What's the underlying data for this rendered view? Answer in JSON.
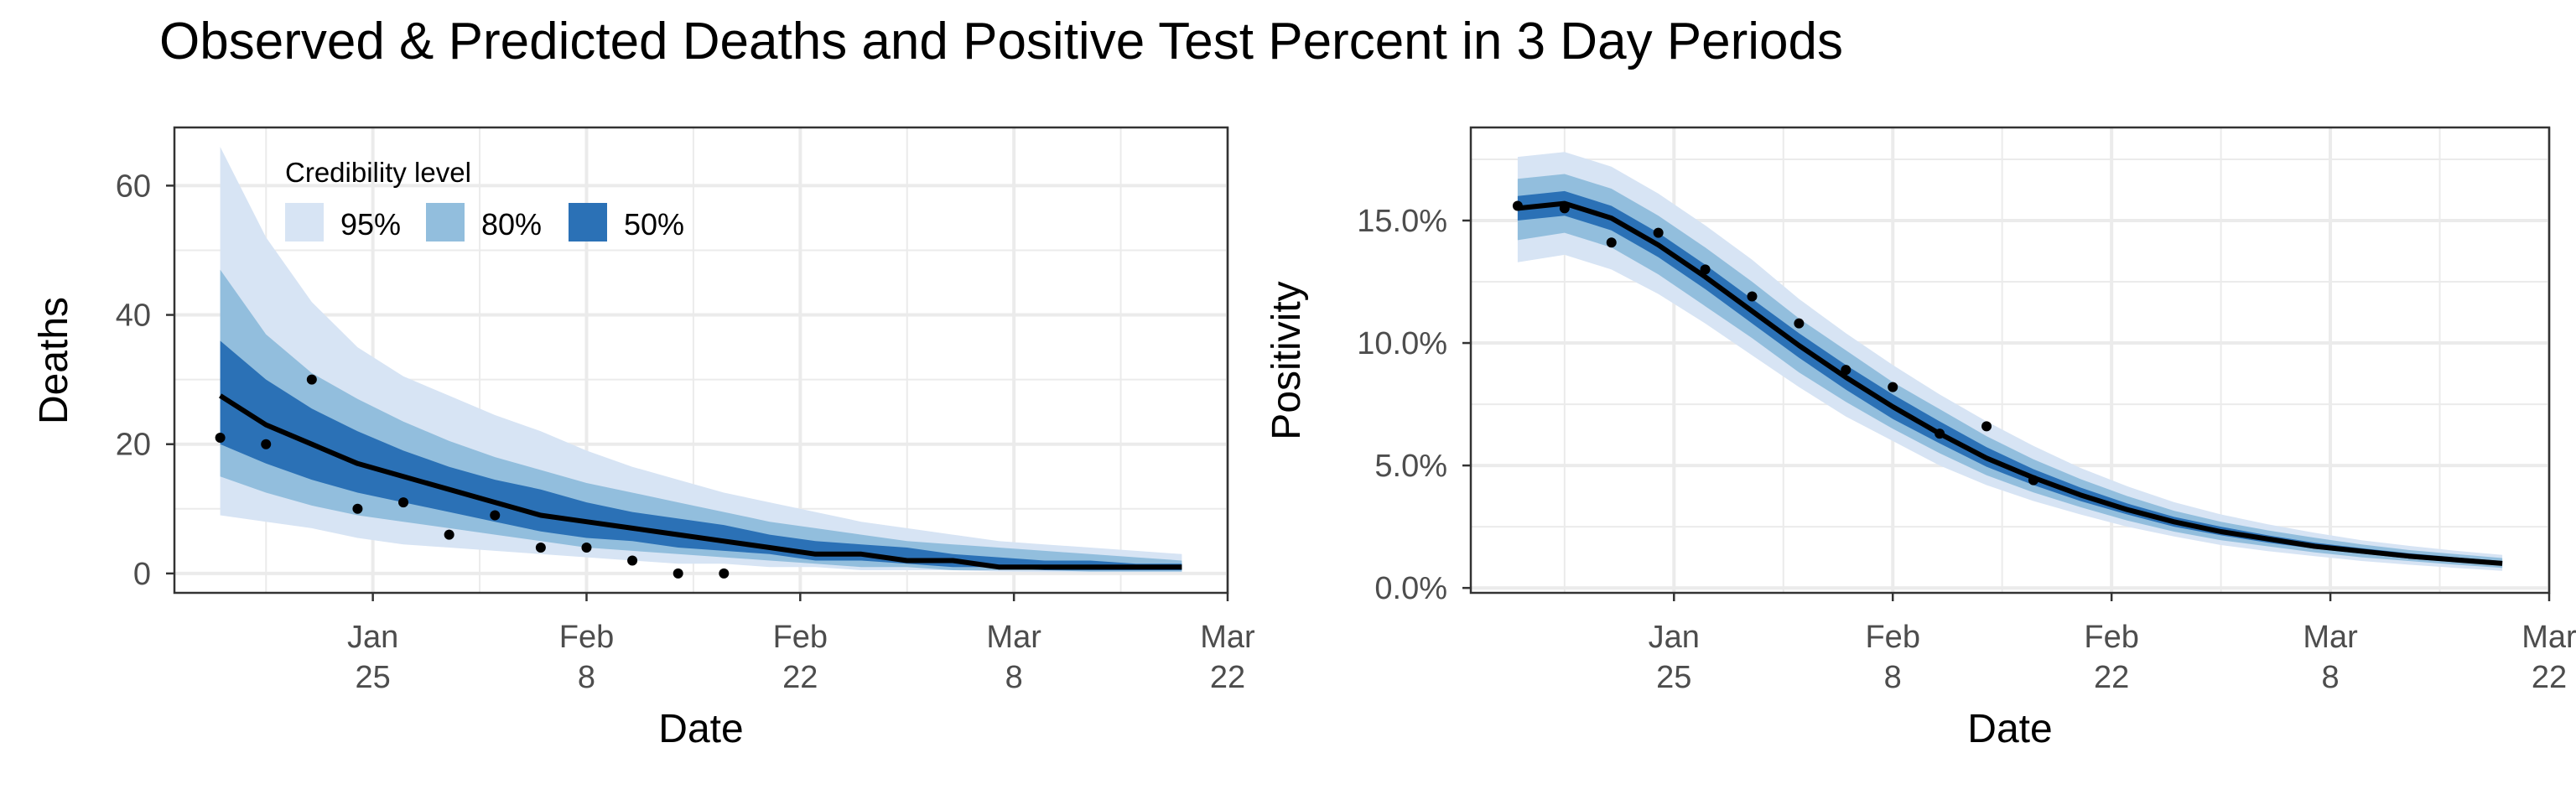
{
  "figure": {
    "title": "Observed & Predicted Deaths and Positive Test Percent in 3 Day Periods"
  },
  "colors": {
    "ci95": "#d7e4f4",
    "ci80": "#92bedd",
    "ci50": "#2b71b6",
    "line": "#000000",
    "point": "#000000",
    "grid": "#ebebeb",
    "panel_border": "#333333"
  },
  "legend": {
    "title": "Credibility level",
    "items": [
      "95%",
      "80%",
      "50%"
    ]
  },
  "chart_data": [
    {
      "type": "line",
      "ylabel": "Deaths",
      "xlabel": "Date",
      "xlim": [
        "2021-01-12",
        "2021-03-22"
      ],
      "ylim": [
        -3,
        69
      ],
      "y_ticks": [
        0,
        20,
        40,
        60
      ],
      "y_tick_labels": [
        "0",
        "20",
        "40",
        "60"
      ],
      "x_ticks": [
        "2021-01-25",
        "2021-02-08",
        "2021-02-22",
        "2021-03-08",
        "2021-03-22"
      ],
      "x_tick_labels": [
        [
          "Jan",
          "25"
        ],
        [
          "Feb",
          "8"
        ],
        [
          "Feb",
          "22"
        ],
        [
          "Mar",
          "8"
        ],
        [
          "Mar",
          "22"
        ]
      ],
      "legend_position": "top-left",
      "grid": true,
      "bands": {
        "x": [
          "2021-01-15",
          "2021-01-18",
          "2021-01-21",
          "2021-01-24",
          "2021-01-27",
          "2021-01-30",
          "2021-02-02",
          "2021-02-05",
          "2021-02-08",
          "2021-02-11",
          "2021-02-14",
          "2021-02-17",
          "2021-02-20",
          "2021-02-23",
          "2021-02-26",
          "2021-03-01",
          "2021-03-04",
          "2021-03-07",
          "2021-03-10",
          "2021-03-13",
          "2021-03-16",
          "2021-03-19"
        ],
        "median": [
          27.5,
          23,
          20,
          17,
          15,
          13,
          11,
          9,
          8,
          7,
          6,
          5,
          4,
          3,
          3,
          2,
          2,
          1,
          1,
          1,
          1,
          1
        ],
        "lo50": [
          20,
          17,
          14.5,
          12.5,
          11,
          9.5,
          8,
          6.5,
          5.5,
          5,
          4,
          3.5,
          3,
          2,
          2,
          1.5,
          1,
          1,
          0.5,
          0.5,
          0.5,
          0.5
        ],
        "hi50": [
          36,
          30,
          25.5,
          22,
          19,
          16.5,
          14.5,
          13,
          11,
          9.5,
          8.5,
          7.5,
          6,
          5,
          4.5,
          4,
          3,
          2.5,
          2,
          2,
          1.5,
          1.5
        ],
        "lo80": [
          15,
          12.5,
          10.5,
          9,
          8,
          7,
          6,
          5,
          4,
          3.5,
          3,
          2.5,
          2,
          1.5,
          1,
          1,
          0.5,
          0.5,
          0.5,
          0.3,
          0.3,
          0.3
        ],
        "hi80": [
          47,
          37,
          31,
          27,
          23.5,
          20.5,
          18,
          16,
          14,
          12.5,
          11,
          9.5,
          8,
          7,
          6,
          5,
          4.5,
          4,
          3.5,
          3,
          2.5,
          2
        ],
        "lo95": [
          9,
          8,
          7,
          5.5,
          4.5,
          4,
          3.5,
          3,
          2.5,
          2,
          1.5,
          1.5,
          1,
          1,
          0.5,
          0.5,
          0.5,
          0.3,
          0.2,
          0.2,
          0.2,
          0.2
        ],
        "hi95": [
          66,
          52,
          42,
          35,
          30.5,
          27.5,
          24.5,
          22,
          19,
          16.5,
          14.5,
          12.5,
          11,
          9.5,
          8,
          7,
          6,
          5,
          4.5,
          4,
          3.5,
          3
        ]
      },
      "observed": {
        "x": [
          "2021-01-15",
          "2021-01-18",
          "2021-01-21",
          "2021-01-24",
          "2021-01-27",
          "2021-01-30",
          "2021-02-02",
          "2021-02-05",
          "2021-02-08",
          "2021-02-11",
          "2021-02-14",
          "2021-02-17"
        ],
        "y": [
          21,
          20,
          30,
          10,
          11,
          6,
          9,
          4,
          4,
          2,
          0,
          0
        ]
      }
    },
    {
      "type": "line",
      "ylabel": "Positivity",
      "xlabel": "Date",
      "xlim": [
        "2021-01-12",
        "2021-03-22"
      ],
      "ylim": [
        -0.2,
        18.8
      ],
      "y_ticks": [
        0,
        5,
        10,
        15
      ],
      "y_tick_labels": [
        "0.0%",
        "5.0%",
        "10.0%",
        "15.0%"
      ],
      "x_ticks": [
        "2021-01-25",
        "2021-02-08",
        "2021-02-22",
        "2021-03-08",
        "2021-03-22"
      ],
      "x_tick_labels": [
        [
          "Jan",
          "25"
        ],
        [
          "Feb",
          "8"
        ],
        [
          "Feb",
          "22"
        ],
        [
          "Mar",
          "8"
        ],
        [
          "Mar",
          "22"
        ]
      ],
      "grid": true,
      "bands": {
        "x": [
          "2021-01-15",
          "2021-01-18",
          "2021-01-21",
          "2021-01-24",
          "2021-01-27",
          "2021-01-30",
          "2021-02-02",
          "2021-02-05",
          "2021-02-08",
          "2021-02-11",
          "2021-02-14",
          "2021-02-17",
          "2021-02-20",
          "2021-02-23",
          "2021-02-26",
          "2021-03-01",
          "2021-03-04",
          "2021-03-07",
          "2021-03-10",
          "2021-03-13",
          "2021-03-16",
          "2021-03-19"
        ],
        "median": [
          15.5,
          15.7,
          15.1,
          14.0,
          12.7,
          11.3,
          9.9,
          8.6,
          7.4,
          6.3,
          5.3,
          4.5,
          3.8,
          3.2,
          2.7,
          2.3,
          2.0,
          1.7,
          1.5,
          1.3,
          1.15,
          1.0
        ],
        "lo50": [
          15.0,
          15.2,
          14.6,
          13.5,
          12.2,
          10.8,
          9.4,
          8.1,
          6.9,
          5.9,
          4.95,
          4.2,
          3.55,
          3.0,
          2.5,
          2.15,
          1.85,
          1.6,
          1.4,
          1.2,
          1.05,
          0.92
        ],
        "hi50": [
          16.0,
          16.2,
          15.6,
          14.5,
          13.2,
          11.8,
          10.4,
          9.1,
          7.9,
          6.8,
          5.75,
          4.85,
          4.1,
          3.45,
          2.9,
          2.5,
          2.15,
          1.85,
          1.62,
          1.42,
          1.25,
          1.1
        ],
        "lo80": [
          14.2,
          14.5,
          13.9,
          12.8,
          11.5,
          10.2,
          8.8,
          7.6,
          6.5,
          5.5,
          4.6,
          3.9,
          3.3,
          2.75,
          2.3,
          1.95,
          1.7,
          1.45,
          1.25,
          1.1,
          0.95,
          0.82
        ],
        "hi80": [
          16.7,
          16.9,
          16.3,
          15.2,
          13.9,
          12.5,
          11.0,
          9.7,
          8.4,
          7.3,
          6.2,
          5.25,
          4.45,
          3.75,
          3.15,
          2.7,
          2.35,
          2.05,
          1.78,
          1.55,
          1.38,
          1.22
        ],
        "lo95": [
          13.3,
          13.6,
          13.0,
          12.0,
          10.8,
          9.5,
          8.2,
          7.0,
          6.0,
          5.0,
          4.2,
          3.55,
          3.0,
          2.5,
          2.1,
          1.75,
          1.5,
          1.3,
          1.1,
          0.95,
          0.82,
          0.7
        ],
        "hi95": [
          17.6,
          17.8,
          17.2,
          16.1,
          14.8,
          13.4,
          11.8,
          10.4,
          9.1,
          7.9,
          6.8,
          5.8,
          4.9,
          4.15,
          3.5,
          3.0,
          2.6,
          2.25,
          1.95,
          1.72,
          1.52,
          1.35
        ]
      },
      "observed": {
        "x": [
          "2021-01-15",
          "2021-01-18",
          "2021-01-21",
          "2021-01-24",
          "2021-01-27",
          "2021-01-30",
          "2021-02-02",
          "2021-02-05",
          "2021-02-08",
          "2021-02-11",
          "2021-02-14",
          "2021-02-17"
        ],
        "y": [
          15.6,
          15.5,
          14.1,
          14.5,
          13.0,
          11.9,
          10.8,
          8.9,
          8.2,
          6.3,
          6.6,
          4.4
        ]
      }
    }
  ]
}
